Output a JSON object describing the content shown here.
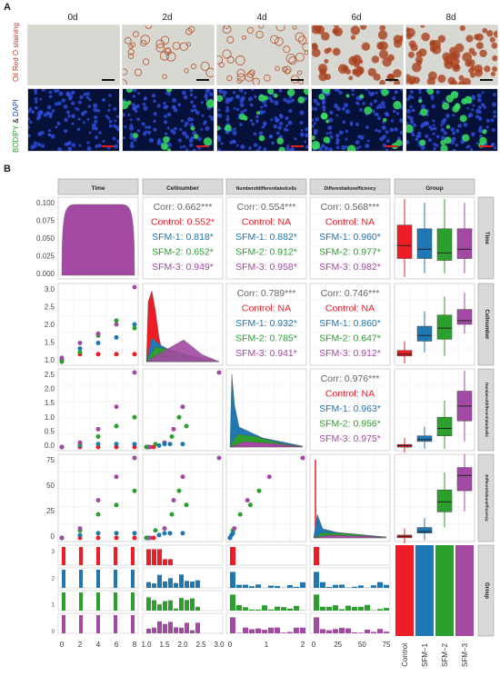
{
  "panel_a": {
    "label": "A",
    "days": [
      "0d",
      "2d",
      "4d",
      "6d",
      "8d"
    ],
    "row1_label": "Oil Red O staining",
    "row2_label_parts": [
      "BODIPY",
      " & ",
      "DAPI"
    ]
  },
  "panel_b": {
    "label": "B"
  },
  "chart_data": {
    "type": "scatter",
    "variables": [
      "Time",
      "Cellnumber",
      "Numberofdifferentiatedcells",
      "Differentiationefficiency",
      "Group"
    ],
    "groups": [
      "Control",
      "SFM-1",
      "SFM-2",
      "SFM-3"
    ],
    "group_colors": {
      "Control": "#ee1c25",
      "SFM-1": "#1f77b4",
      "SFM-2": "#2ca02c",
      "SFM-3": "#a349a4"
    },
    "correlations": [
      {
        "cell": "Time-Cellnumber",
        "lines": [
          "Corr: 0.662***",
          "Control: 0.552*",
          "SFM-1: 0.818*",
          "SFM-2: 0.652*",
          "SFM-3: 0.949*"
        ]
      },
      {
        "cell": "Time-Numberofdifferentiatedcells",
        "lines": [
          "Corr: 0.554***",
          "Control: NA",
          "SFM-1: 0.882*",
          "SFM-2: 0.912*",
          "SFM-3: 0.958*"
        ]
      },
      {
        "cell": "Time-Differentiationefficiency",
        "lines": [
          "Corr: 0.568***",
          "Control: NA",
          "SFM-1: 0.960*",
          "SFM-2: 0.977*",
          "SFM-3: 0.982*"
        ]
      },
      {
        "cell": "Cellnumber-Numberofdifferentiatedcells",
        "lines": [
          "Corr: 0.789***",
          "Control: NA",
          "SFM-1: 0.932*",
          "SFM-2: 0.785*",
          "SFM-3: 0.941*"
        ]
      },
      {
        "cell": "Cellnumber-Differentiationefficiency",
        "lines": [
          "Corr: 0.746***",
          "Control: NA",
          "SFM-1: 0.860*",
          "SFM-2: 0.647*",
          "SFM-3: 0.912*"
        ]
      },
      {
        "cell": "Numberofdifferentiatedcells-Differentiationefficiency",
        "lines": [
          "Corr: 0.976***",
          "Control: NA",
          "SFM-1: 0.963*",
          "SFM-2: 0.956*",
          "SFM-3: 0.975*"
        ]
      }
    ],
    "x_ticks": {
      "Time": [
        "0",
        "2",
        "4",
        "6",
        "8"
      ],
      "Cellnumber": [
        "1.0",
        "1.5",
        "2.0",
        "2.5",
        "3.0"
      ],
      "Numberofdifferentiatedcells": [
        "0",
        "1",
        "2"
      ],
      "Differentiationefficiency": [
        "0",
        "25",
        "50",
        "75"
      ],
      "Group": [
        "Control",
        "SFM−1",
        "SFM−2",
        "SFM−3"
      ]
    },
    "y_ticks": {
      "Time": [
        "0.100",
        "0.075",
        "0.050",
        "0.025",
        "0.000"
      ],
      "Cellnumber": [
        "3.0",
        "2.5",
        "2.0",
        "1.5",
        "1.0"
      ],
      "Numberofdifferentiatedcells": [
        "2.5",
        "2.0",
        "1.5",
        "1.0",
        "0.5",
        "0.0"
      ],
      "Differentiationefficiency": [
        "75",
        "50",
        "25",
        "0"
      ],
      "Group": [
        "3",
        "2",
        "1",
        "0"
      ]
    },
    "scatter": {
      "time_cell": [
        [
          0,
          1.0,
          "Control"
        ],
        [
          0,
          1.05,
          "SFM-1"
        ],
        [
          0,
          1.0,
          "SFM-2"
        ],
        [
          0,
          1.1,
          "SFM-3"
        ],
        [
          2,
          1.2,
          "Control"
        ],
        [
          2,
          1.35,
          "SFM-1"
        ],
        [
          2,
          1.25,
          "SFM-2"
        ],
        [
          2,
          1.5,
          "SFM-3"
        ],
        [
          4,
          1.2,
          "Control"
        ],
        [
          4,
          1.5,
          "SFM-1"
        ],
        [
          4,
          1.7,
          "SFM-2"
        ],
        [
          4,
          1.75,
          "SFM-3"
        ],
        [
          6,
          1.2,
          "Control"
        ],
        [
          6,
          1.65,
          "SFM-1"
        ],
        [
          6,
          2.1,
          "SFM-2"
        ],
        [
          6,
          2.0,
          "SFM-3"
        ],
        [
          8,
          1.2,
          "Control"
        ],
        [
          8,
          2.0,
          "SFM-1"
        ],
        [
          8,
          1.9,
          "SFM-2"
        ],
        [
          8,
          3.0,
          "SFM-3"
        ]
      ],
      "time_ndc": [
        [
          0,
          0.0,
          "Control"
        ],
        [
          0,
          0.0,
          "SFM-1"
        ],
        [
          0,
          0.0,
          "SFM-2"
        ],
        [
          0,
          0.0,
          "SFM-3"
        ],
        [
          2,
          0.0,
          "Control"
        ],
        [
          2,
          0.05,
          "SFM-1"
        ],
        [
          2,
          0.1,
          "SFM-2"
        ],
        [
          2,
          0.15,
          "SFM-3"
        ],
        [
          4,
          0.0,
          "Control"
        ],
        [
          4,
          0.1,
          "SFM-1"
        ],
        [
          4,
          0.35,
          "SFM-2"
        ],
        [
          4,
          0.6,
          "SFM-3"
        ],
        [
          6,
          0.0,
          "Control"
        ],
        [
          6,
          0.1,
          "SFM-1"
        ],
        [
          6,
          0.7,
          "SFM-2"
        ],
        [
          6,
          1.35,
          "SFM-3"
        ],
        [
          8,
          0.0,
          "Control"
        ],
        [
          8,
          0.1,
          "SFM-1"
        ],
        [
          8,
          1.0,
          "SFM-2"
        ],
        [
          8,
          2.5,
          "SFM-3"
        ]
      ],
      "time_de": [
        [
          0,
          0,
          "Control"
        ],
        [
          0,
          0,
          "SFM-1"
        ],
        [
          0,
          0,
          "SFM-2"
        ],
        [
          0,
          0,
          "SFM-3"
        ],
        [
          2,
          0,
          "Control"
        ],
        [
          2,
          3,
          "SFM-1"
        ],
        [
          2,
          8,
          "SFM-2"
        ],
        [
          2,
          10,
          "SFM-3"
        ],
        [
          4,
          0,
          "Control"
        ],
        [
          4,
          5,
          "SFM-1"
        ],
        [
          4,
          25,
          "SFM-2"
        ],
        [
          4,
          40,
          "SFM-3"
        ],
        [
          6,
          0,
          "Control"
        ],
        [
          6,
          5,
          "SFM-1"
        ],
        [
          6,
          35,
          "SFM-2"
        ],
        [
          6,
          65,
          "SFM-3"
        ],
        [
          8,
          0,
          "Control"
        ],
        [
          8,
          5,
          "SFM-1"
        ],
        [
          8,
          50,
          "SFM-2"
        ],
        [
          8,
          85,
          "SFM-3"
        ]
      ],
      "cell_ndc": [
        [
          1.0,
          0.0,
          "Control"
        ],
        [
          1.05,
          0.0,
          "SFM-1"
        ],
        [
          1.0,
          0.0,
          "SFM-2"
        ],
        [
          1.1,
          0.0,
          "SFM-3"
        ],
        [
          1.2,
          0.0,
          "Control"
        ],
        [
          1.35,
          0.05,
          "SFM-1"
        ],
        [
          1.25,
          0.1,
          "SFM-2"
        ],
        [
          1.5,
          0.15,
          "SFM-3"
        ],
        [
          1.5,
          0.1,
          "SFM-1"
        ],
        [
          1.7,
          0.35,
          "SFM-2"
        ],
        [
          1.75,
          0.6,
          "SFM-3"
        ],
        [
          1.65,
          0.1,
          "SFM-1"
        ],
        [
          2.1,
          0.7,
          "SFM-2"
        ],
        [
          2.0,
          1.35,
          "SFM-3"
        ],
        [
          2.0,
          0.1,
          "SFM-1"
        ],
        [
          1.9,
          1.0,
          "SFM-2"
        ],
        [
          3.0,
          2.5,
          "SFM-3"
        ]
      ],
      "cell_de": [
        [
          1.0,
          0,
          "Control"
        ],
        [
          1.05,
          0,
          "SFM-1"
        ],
        [
          1.0,
          0,
          "SFM-2"
        ],
        [
          1.1,
          0,
          "SFM-3"
        ],
        [
          1.2,
          0,
          "Control"
        ],
        [
          1.35,
          3,
          "SFM-1"
        ],
        [
          1.25,
          8,
          "SFM-2"
        ],
        [
          1.5,
          10,
          "SFM-3"
        ],
        [
          1.5,
          5,
          "SFM-1"
        ],
        [
          1.7,
          25,
          "SFM-2"
        ],
        [
          1.75,
          40,
          "SFM-3"
        ],
        [
          1.65,
          5,
          "SFM-1"
        ],
        [
          2.1,
          35,
          "SFM-2"
        ],
        [
          2.0,
          65,
          "SFM-3"
        ],
        [
          2.0,
          5,
          "SFM-1"
        ],
        [
          1.9,
          50,
          "SFM-2"
        ],
        [
          3.0,
          85,
          "SFM-3"
        ]
      ],
      "ndc_de": [
        [
          0.0,
          0,
          "Control"
        ],
        [
          0.0,
          0,
          "SFM-1"
        ],
        [
          0.05,
          3,
          "SFM-1"
        ],
        [
          0.1,
          8,
          "SFM-2"
        ],
        [
          0.15,
          10,
          "SFM-3"
        ],
        [
          0.1,
          5,
          "SFM-1"
        ],
        [
          0.35,
          25,
          "SFM-2"
        ],
        [
          0.6,
          40,
          "SFM-3"
        ],
        [
          0.7,
          35,
          "SFM-2"
        ],
        [
          1.35,
          65,
          "SFM-3"
        ],
        [
          1.0,
          50,
          "SFM-2"
        ],
        [
          2.5,
          85,
          "SFM-3"
        ]
      ]
    }
  }
}
